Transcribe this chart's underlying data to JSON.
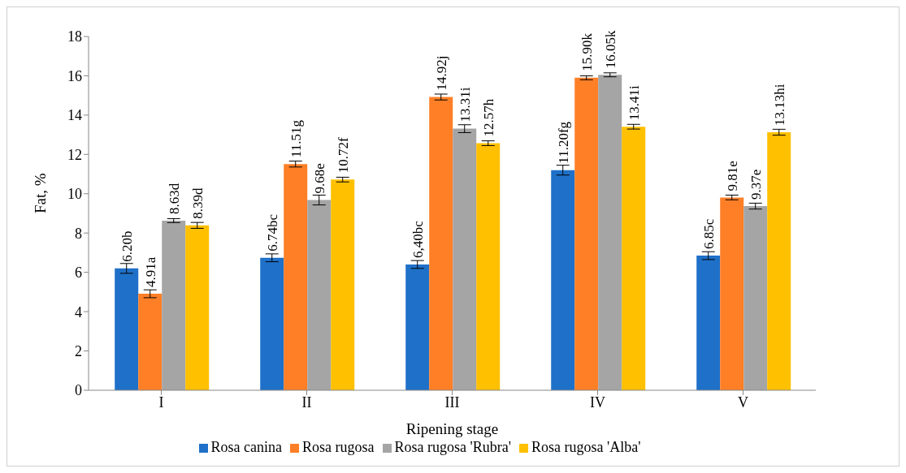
{
  "chart_data": {
    "type": "bar",
    "xlabel": "Ripening stage",
    "ylabel": "Fat, %",
    "categories": [
      "I",
      "II",
      "III",
      "IV",
      "V"
    ],
    "series": [
      {
        "name": "Rosa canina",
        "color": "#1f70c8",
        "values": [
          6.2,
          6.74,
          6.4,
          11.2,
          6.85
        ],
        "errors": [
          0.25,
          0.2,
          0.2,
          0.25,
          0.2
        ],
        "value_labels": [
          "6.20b",
          "6.74bc",
          "6,40bc",
          "11.20fg",
          "6.85c"
        ]
      },
      {
        "name": "Rosa rugosa",
        "color": "#ff7f27",
        "values": [
          4.91,
          11.51,
          14.92,
          15.9,
          9.81
        ],
        "errors": [
          0.2,
          0.15,
          0.15,
          0.1,
          0.12
        ],
        "value_labels": [
          "4.91a",
          "11.51g",
          "14.92j",
          "15.90k",
          "9.81e"
        ]
      },
      {
        "name": "Rosa rugosa 'Rubra'",
        "color": "#a5a5a5",
        "values": [
          8.63,
          9.68,
          13.31,
          16.05,
          9.37
        ],
        "errors": [
          0.1,
          0.25,
          0.2,
          0.1,
          0.15
        ],
        "value_labels": [
          "8.63d",
          "9.68e",
          "13.31i",
          "16.05k",
          "9.37e"
        ]
      },
      {
        "name": "Rosa rugosa 'Alba'",
        "color": "#ffc000",
        "values": [
          8.39,
          10.72,
          12.57,
          13.41,
          13.13
        ],
        "errors": [
          0.15,
          0.12,
          0.12,
          0.12,
          0.15
        ],
        "value_labels": [
          "8.39d",
          "10.72f",
          "12.57h",
          "13.41i",
          "13.13hi"
        ]
      }
    ],
    "ylim": [
      0,
      18
    ],
    "yticks": [
      0,
      2,
      4,
      6,
      8,
      10,
      12,
      14,
      16,
      18
    ],
    "grid": false,
    "legend": "bottom"
  }
}
